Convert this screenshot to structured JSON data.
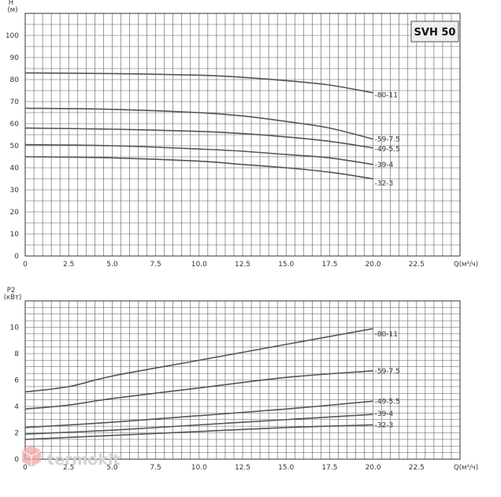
{
  "colors": {
    "grid": "#5a5a5a",
    "curve": "#555555",
    "watermark": "#cfd3d8",
    "logo": "#f2a6a6",
    "badge_bg": "#eeeeee"
  },
  "badge": "SVH 50",
  "watermark": "termokit",
  "chart_data": [
    {
      "type": "line",
      "xlabel": "Q(м³/ч)",
      "ylabel_line1": "H",
      "ylabel_line2": "(м)",
      "xlim": [
        0,
        25
      ],
      "ylim": [
        0,
        110
      ],
      "x_ticks": [
        "0",
        "2.5",
        "5.0",
        "7.5",
        "10.0",
        "12.5",
        "15.0",
        "17.5",
        "20.0",
        "22.5"
      ],
      "y_ticks": [
        "0",
        "10",
        "20",
        "30",
        "40",
        "50",
        "60",
        "70",
        "80",
        "90",
        "100"
      ],
      "x_tick_values": [
        0,
        2.5,
        5,
        7.5,
        10,
        12.5,
        15,
        17.5,
        20,
        22.5
      ],
      "y_tick_values": [
        0,
        10,
        20,
        30,
        40,
        50,
        60,
        70,
        80,
        90,
        100
      ],
      "grid": true,
      "series": [
        {
          "name": "-80-11",
          "x": [
            0,
            5,
            10,
            12.5,
            15,
            17.5,
            20
          ],
          "y": [
            83,
            82.7,
            82,
            81,
            79.5,
            77.5,
            74
          ]
        },
        {
          "name": "-59-7.5",
          "x": [
            0,
            5,
            10,
            12.5,
            15,
            17.5,
            20
          ],
          "y": [
            67,
            66.5,
            65,
            63.5,
            61,
            58,
            53
          ]
        },
        {
          "name": "-49-5.5",
          "x": [
            0,
            5,
            10,
            12.5,
            15,
            17.5,
            20
          ],
          "y": [
            58,
            57.5,
            56.5,
            55.5,
            54,
            52,
            49
          ]
        },
        {
          "name": "-39-4",
          "x": [
            0,
            5,
            10,
            12.5,
            15,
            17.5,
            20
          ],
          "y": [
            50.5,
            50,
            48.5,
            47.5,
            46,
            44.5,
            41.5
          ]
        },
        {
          "name": "-32-3",
          "x": [
            0,
            5,
            10,
            12.5,
            15,
            17.5,
            20
          ],
          "y": [
            45,
            44.5,
            43,
            41.5,
            40,
            38,
            35
          ]
        }
      ],
      "label_y": [
        73,
        53,
        48.5,
        41.5,
        33
      ]
    },
    {
      "type": "line",
      "xlabel": "Q(м³/ч)",
      "ylabel_line1": "P2",
      "ylabel_line2": "(кВт)",
      "xlim": [
        0,
        25
      ],
      "ylim": [
        0,
        12
      ],
      "x_ticks": [
        "0",
        "2.5",
        "5.0",
        "7.5",
        "10.0",
        "12.5",
        "15.0",
        "17.5",
        "20.0",
        "22.5"
      ],
      "y_ticks": [
        "0",
        "2",
        "4",
        "6",
        "8",
        "10"
      ],
      "x_tick_values": [
        0,
        2.5,
        5,
        7.5,
        10,
        12.5,
        15,
        17.5,
        20,
        22.5
      ],
      "y_tick_values": [
        0,
        2,
        4,
        6,
        8,
        10
      ],
      "grid": true,
      "series": [
        {
          "name": "-80-11",
          "x": [
            0,
            2.5,
            5,
            10,
            15,
            20
          ],
          "y": [
            5.1,
            5.5,
            6.3,
            7.5,
            8.7,
            9.9
          ]
        },
        {
          "name": "-59-7.5",
          "x": [
            0,
            2.5,
            5,
            10,
            15,
            20
          ],
          "y": [
            3.8,
            4.1,
            4.6,
            5.4,
            6.2,
            6.7
          ]
        },
        {
          "name": "-49-5.5",
          "x": [
            0,
            5,
            10,
            15,
            20
          ],
          "y": [
            2.4,
            2.8,
            3.3,
            3.8,
            4.4
          ]
        },
        {
          "name": "-39-4",
          "x": [
            0,
            5,
            10,
            15,
            20
          ],
          "y": [
            1.9,
            2.2,
            2.6,
            3.0,
            3.4
          ]
        },
        {
          "name": "-32-3",
          "x": [
            0,
            5,
            10,
            15,
            20
          ],
          "y": [
            1.5,
            1.8,
            2.1,
            2.4,
            2.6
          ]
        }
      ],
      "label_y": [
        9.5,
        6.7,
        4.4,
        3.45,
        2.6
      ]
    }
  ]
}
